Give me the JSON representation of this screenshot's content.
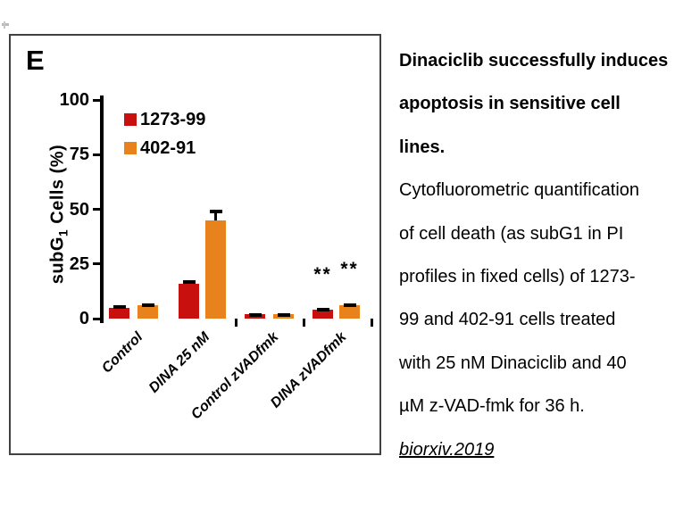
{
  "panel": {
    "label": "E"
  },
  "chart_data": {
    "type": "bar",
    "title": "",
    "xlabel": "",
    "ylabel": "subG1 Cells (%)",
    "ylabel_parts": {
      "pre": "subG",
      "sub": "1",
      "post": " Cells (%)"
    },
    "ylim": [
      0,
      100
    ],
    "yticks": [
      0,
      25,
      50,
      75,
      100
    ],
    "grid": false,
    "legend_position": "inside-top-left",
    "categories": [
      "Control",
      "DINA 25 nM",
      "Control zVADfmk",
      "DINA zVADfmk"
    ],
    "series": [
      {
        "name": "1273-99",
        "color": "#c8100f",
        "values": [
          5,
          16,
          2,
          4
        ],
        "errors": [
          1,
          1.5,
          0.5,
          1
        ]
      },
      {
        "name": "402-91",
        "color": "#e8821c",
        "values": [
          6,
          45,
          2,
          6
        ],
        "errors": [
          1,
          5,
          0.5,
          1
        ]
      }
    ],
    "annotations": [
      {
        "text": "**",
        "category_index": 3,
        "series_index": 0
      },
      {
        "text": "**",
        "category_index": 3,
        "series_index": 1
      }
    ]
  },
  "caption": {
    "lines": [
      {
        "text": "Dinaciclib successfully induces",
        "bold": true
      },
      {
        "text": "apoptosis in sensitive cell",
        "bold": true
      },
      {
        "text": "lines.",
        "bold": true
      },
      {
        "text": "Cytofluorometric quantification"
      },
      {
        "text": "of cell death (as subG1 in PI"
      },
      {
        "text": "profiles in fixed cells) of 1273-"
      },
      {
        "text": "99 and 402-91 cells treated"
      },
      {
        "text": "with 25 nM Dinaciclib and 40"
      },
      {
        "text": "µM z-VAD-fmk for 36 h."
      },
      {
        "text": "biorxiv.2019",
        "italic": true,
        "underline": true
      }
    ]
  }
}
